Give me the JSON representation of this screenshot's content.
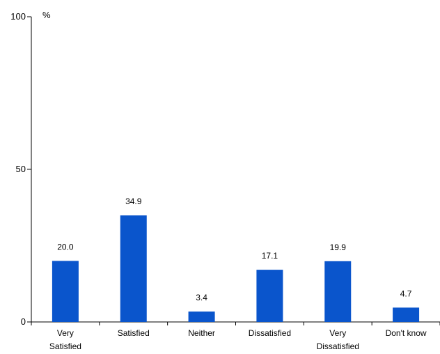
{
  "chart_data": {
    "type": "bar",
    "unit_label": "%",
    "categories": [
      [
        "Very",
        "Satisfied"
      ],
      [
        "Satisfied"
      ],
      [
        "Neither"
      ],
      [
        "Dissatisfied"
      ],
      [
        "Very",
        "Dissatisfied"
      ],
      [
        "Don't know"
      ]
    ],
    "values": [
      20.0,
      34.9,
      3.4,
      17.1,
      19.9,
      4.7
    ],
    "value_labels": [
      "20.0",
      "34.9",
      "3.4",
      "17.1",
      "19.9",
      "4.7"
    ],
    "ylim": [
      0,
      100
    ],
    "yticks": [
      "0",
      "50",
      "100"
    ],
    "bar_color": "#0a55cc",
    "axis_color": "#000000",
    "grid": false,
    "legend": "none"
  }
}
